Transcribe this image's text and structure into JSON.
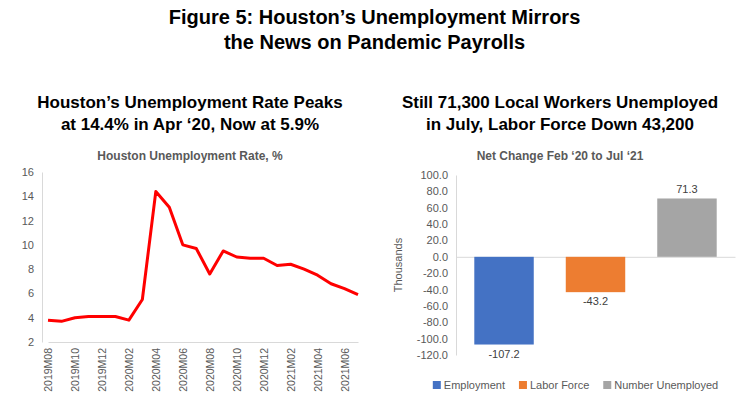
{
  "title": [
    "Figure 5: Houston’s Unemployment Mirrors",
    "the News on Pandemic Payrolls"
  ],
  "chart_data": [
    {
      "type": "line",
      "title": [
        "Houston’s Unemployment Rate Peaks",
        "at 14.4% in Apr ‘20, Now at 5.9%"
      ],
      "subtitle": "Houston Unemployment Rate, %",
      "categories": [
        "2019M08",
        null,
        "2019M10",
        null,
        "2019M12",
        null,
        "2020M02",
        null,
        "2020M04",
        null,
        "2020M06",
        null,
        "2020M08",
        null,
        "2020M10",
        null,
        "2020M12",
        null,
        "2021M02",
        null,
        "2021M04",
        null,
        "2021M06",
        null
      ],
      "values": [
        3.8,
        3.7,
        4.0,
        4.1,
        4.1,
        4.1,
        3.8,
        5.5,
        14.4,
        13.1,
        10.0,
        9.7,
        7.6,
        9.5,
        9.0,
        8.9,
        8.9,
        8.3,
        8.4,
        8.0,
        7.5,
        6.8,
        6.4,
        5.9
      ],
      "color": "#ff0000",
      "ylim": [
        2,
        16
      ],
      "yticks": [
        2,
        4,
        6,
        8,
        10,
        12,
        14,
        16
      ],
      "grid": false
    },
    {
      "type": "bar",
      "title": [
        "Still 71,300 Local Workers Unemployed",
        "in July, Labor Force Down 43,200"
      ],
      "subtitle": "Net Change Feb ‘20 to Jul ‘21",
      "y_label": "Thousands",
      "categories": [
        "Employment",
        "Labor Force",
        "Number Unemployed"
      ],
      "values": [
        -107.2,
        -43.2,
        71.3
      ],
      "colors": [
        "#4472c4",
        "#ed7d31",
        "#a5a5a5"
      ],
      "ylim": [
        -120,
        100
      ],
      "yticks": [
        {
          "value": -120,
          "label": "-120.0"
        },
        {
          "value": -100,
          "label": "-100.0"
        },
        {
          "value": -80,
          "label": "-80.0"
        },
        {
          "value": -60,
          "label": "-60.0"
        },
        {
          "value": -40,
          "label": "-40.0"
        },
        {
          "value": -20,
          "label": "-20.0"
        },
        {
          "value": 0,
          "label": "0.0"
        },
        {
          "value": 20,
          "label": "20.0"
        },
        {
          "value": 40,
          "label": "40.0"
        },
        {
          "value": 60,
          "label": "60.0"
        },
        {
          "value": 80,
          "label": "80.0"
        },
        {
          "value": 100,
          "label": "100.0"
        }
      ],
      "grid": false,
      "legend": "bottom",
      "data_labels": true,
      "tick_labels": "y"
    }
  ]
}
